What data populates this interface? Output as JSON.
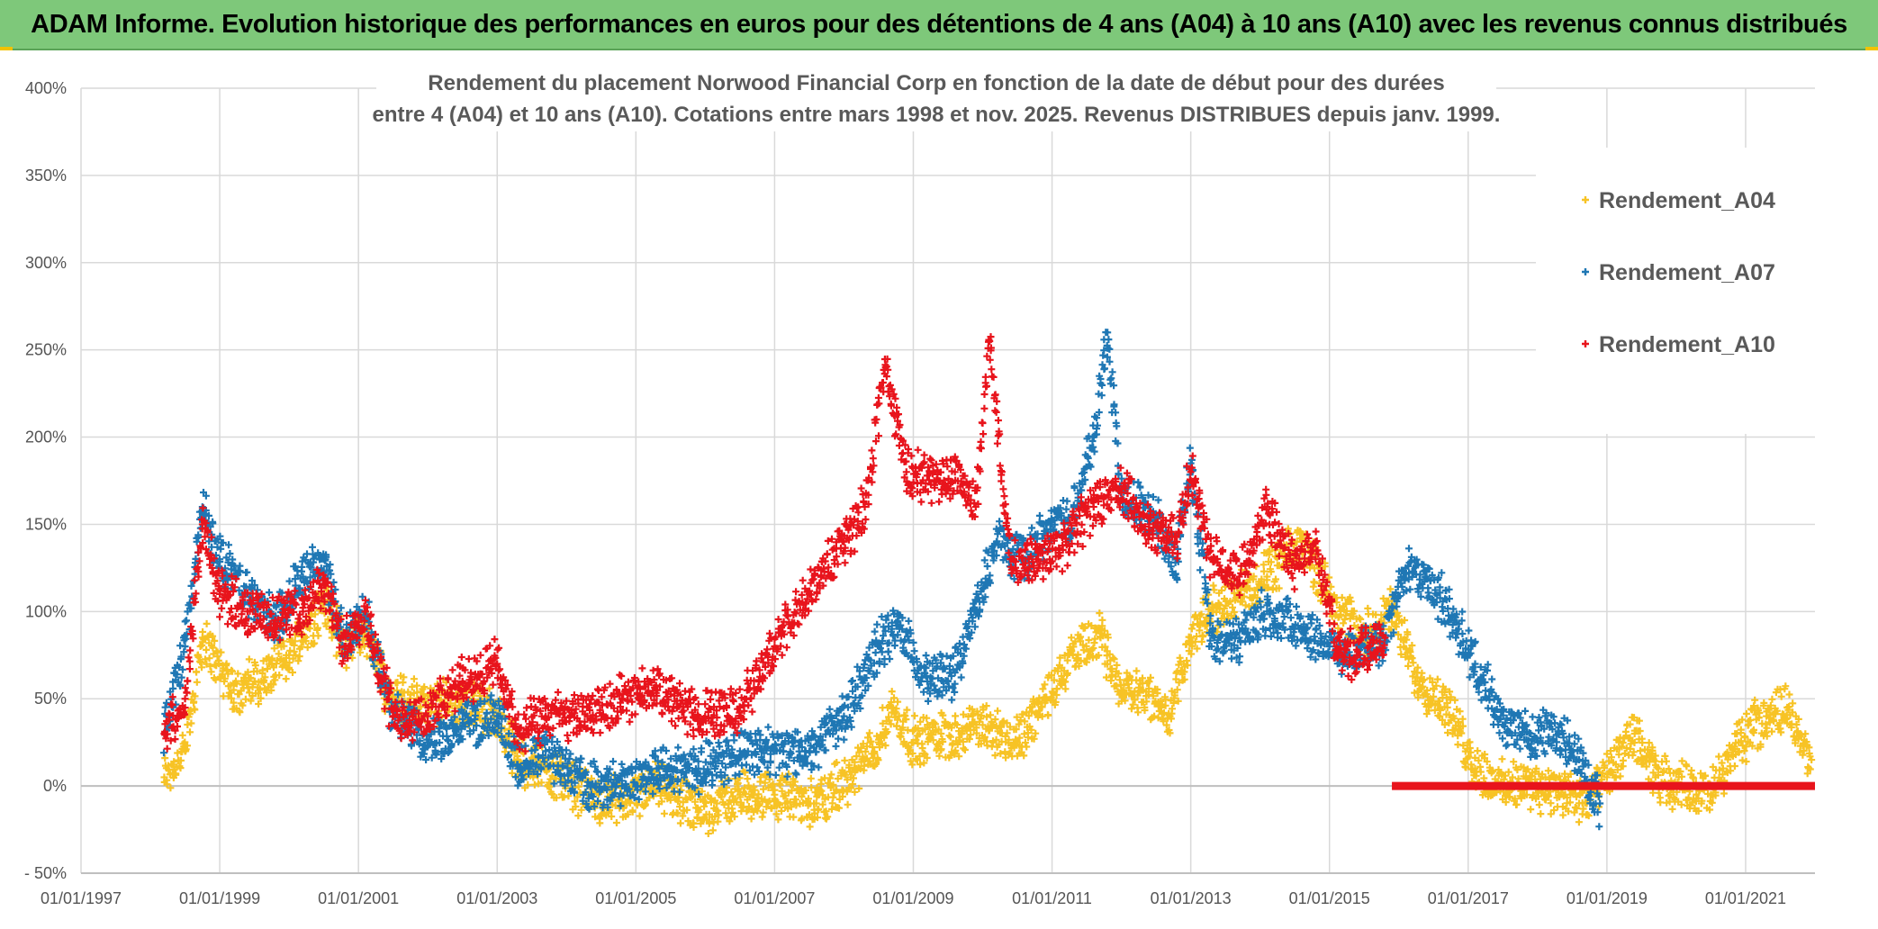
{
  "banner": {
    "title": "ADAM Informe. Evolution historique des performances en euros pour des détentions de 4 ans (A04) à 10 ans (A10) avec les revenus connus distribués"
  },
  "colors": {
    "banner_bg": "#7ec87a",
    "a04": "#f7c325",
    "a07": "#1f77b4",
    "a10": "#e8141c",
    "grid": "#d9d9d9"
  },
  "chart_data": {
    "type": "scatter",
    "title_lines": [
      "Rendement du placement Norwood Financial Corp en fonction de la date de début pour des durées",
      "entre 4 (A04) et 10 ans (A10). Cotations entre mars 1998 et nov. 2025. Revenus DISTRIBUES depuis janv. 1999."
    ],
    "y_ticks": [
      "400%",
      "350%",
      "300%",
      "250%",
      "200%",
      "150%",
      "100%",
      "50%",
      "0%",
      "- 50%"
    ],
    "y_values": [
      400,
      350,
      300,
      250,
      200,
      150,
      100,
      50,
      0,
      -50
    ],
    "ylim": [
      -50,
      400
    ],
    "x_ticks": [
      "01/01/1997",
      "01/01/1999",
      "01/01/2001",
      "01/01/2003",
      "01/01/2005",
      "01/01/2007",
      "01/01/2009",
      "01/01/2011",
      "01/01/2013",
      "01/01/2015",
      "01/01/2017",
      "01/01/2019",
      "01/01/2021"
    ],
    "x_tick_years": [
      1997,
      1999,
      2001,
      2003,
      2005,
      2007,
      2009,
      2011,
      2013,
      2015,
      2017,
      2019,
      2021
    ],
    "xlim": [
      1997.0,
      2022.0
    ],
    "series": [
      {
        "name": "Rendement_A04",
        "color": "#f7c325",
        "x_start": 1998.2,
        "x_end": 2021.95,
        "x": [
          1998.2,
          1998.5,
          1998.75,
          1999.2,
          1999.6,
          2000.0,
          2000.5,
          2000.8,
          2001.1,
          2001.4,
          2002.0,
          2002.5,
          2003.0,
          2003.3,
          2003.7,
          2004.3,
          2004.8,
          2005.3,
          2005.9,
          2006.5,
          2007.0,
          2007.6,
          2008.1,
          2008.5,
          2008.7,
          2009.0,
          2009.4,
          2009.7,
          2010.0,
          2010.5,
          2010.9,
          2011.3,
          2011.7,
          2012.0,
          2012.3,
          2012.7,
          2013.0,
          2013.3,
          2013.7,
          2014.1,
          2014.6,
          2015.0,
          2015.5,
          2015.9,
          2016.3,
          2016.7,
          2017.1,
          2017.5,
          2018.0,
          2018.4,
          2018.7,
          2019.0,
          2019.4,
          2019.7,
          2020.1,
          2020.5,
          2020.9,
          2021.3,
          2021.6,
          2021.95
        ],
        "values": [
          5,
          20,
          85,
          55,
          60,
          75,
          105,
          80,
          90,
          55,
          45,
          50,
          40,
          15,
          10,
          -5,
          -10,
          0,
          -15,
          -5,
          -5,
          -10,
          5,
          25,
          45,
          25,
          30,
          30,
          35,
          25,
          50,
          75,
          85,
          55,
          55,
          40,
          85,
          100,
          110,
          120,
          140,
          110,
          85,
          100,
          60,
          45,
          10,
          0,
          0,
          -5,
          -10,
          5,
          30,
          5,
          0,
          -5,
          25,
          40,
          45,
          15
        ]
      },
      {
        "name": "Rendement_A07",
        "color": "#1f77b4",
        "x_start": 1998.2,
        "x_end": 2018.9,
        "x": [
          1998.2,
          1998.5,
          1998.75,
          1999.0,
          1999.4,
          1999.8,
          2000.2,
          2000.5,
          2000.8,
          2001.1,
          2001.5,
          2002.0,
          2002.5,
          2003.0,
          2003.3,
          2003.7,
          2004.3,
          2004.8,
          2005.3,
          2005.9,
          2006.5,
          2007.0,
          2007.5,
          2008.0,
          2008.5,
          2008.8,
          2009.2,
          2009.6,
          2009.9,
          2010.2,
          2010.6,
          2011.0,
          2011.3,
          2011.6,
          2011.8,
          2012.0,
          2012.4,
          2012.8,
          2013.0,
          2013.3,
          2013.7,
          2014.1,
          2014.6,
          2015.0,
          2015.4,
          2015.8,
          2016.1,
          2016.4,
          2016.8,
          2017.1,
          2017.5,
          2017.9,
          2018.3,
          2018.6,
          2018.9
        ],
        "values": [
          30,
          80,
          160,
          130,
          110,
          95,
          120,
          130,
          80,
          100,
          40,
          25,
          35,
          40,
          10,
          20,
          0,
          0,
          10,
          10,
          20,
          20,
          20,
          40,
          80,
          90,
          60,
          65,
          100,
          140,
          130,
          150,
          155,
          200,
          260,
          165,
          160,
          130,
          185,
          80,
          85,
          100,
          90,
          80,
          75,
          85,
          125,
          120,
          95,
          70,
          35,
          30,
          30,
          15,
          -10
        ]
      },
      {
        "name": "Rendement_A10",
        "color": "#e8141c",
        "x_start": 1998.2,
        "x_end": 2015.8,
        "x": [
          1998.2,
          1998.5,
          1998.75,
          1999.0,
          1999.4,
          1999.8,
          2000.2,
          2000.5,
          2000.8,
          2001.1,
          2001.5,
          2002.0,
          2002.5,
          2003.0,
          2003.3,
          2003.7,
          2004.3,
          2004.8,
          2005.3,
          2005.9,
          2006.5,
          2007.0,
          2007.5,
          2008.0,
          2008.3,
          2008.6,
          2008.9,
          2009.3,
          2009.6,
          2009.9,
          2010.1,
          2010.4,
          2010.8,
          2011.2,
          2011.6,
          2012.0,
          2012.4,
          2012.8,
          2013.0,
          2013.3,
          2013.7,
          2014.1,
          2014.5,
          2014.8,
          2015.1,
          2015.4,
          2015.8
        ],
        "values": [
          30,
          50,
          150,
          110,
          100,
          95,
          100,
          115,
          80,
          100,
          40,
          40,
          60,
          70,
          30,
          40,
          40,
          50,
          55,
          40,
          45,
          80,
          110,
          140,
          160,
          240,
          180,
          175,
          180,
          160,
          255,
          130,
          130,
          140,
          160,
          170,
          150,
          140,
          180,
          130,
          120,
          160,
          125,
          140,
          80,
          75,
          85
        ]
      }
    ],
    "flat_line": {
      "series": "Rendement_A10",
      "color": "#e8141c",
      "x_start": 2015.9,
      "x_end": 2022.0,
      "value": 0
    },
    "legend": [
      "Rendement_A04",
      "Rendement_A07",
      "Rendement_A10"
    ],
    "legend_position": "top-right",
    "grid": true
  }
}
